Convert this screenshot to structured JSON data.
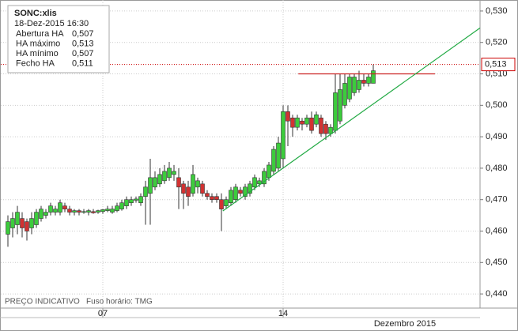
{
  "chart_data": {
    "type": "candlestick",
    "info_box": {
      "title": "SONC:xlis",
      "date": "18-Dez-2015 16:30",
      "rows": [
        [
          "Abertura HA",
          "0,507"
        ],
        [
          "HA máximo",
          "0,513"
        ],
        [
          "HA mínimo",
          "0,507"
        ],
        [
          "Fecho HA",
          "0,511"
        ]
      ]
    },
    "footer_note": "PREÇO INDICATIVO",
    "timezone_note": "Fuso horário: TMG",
    "x_label": "Dezembro 2015",
    "open": [
      0.459,
      0.461,
      0.462,
      0.464,
      0.463,
      0.461,
      0.462,
      0.464,
      0.465,
      0.466,
      0.466,
      0.466,
      0.468,
      0.467,
      0.466,
      0.4665,
      0.466,
      0.466,
      0.4662,
      0.466,
      0.4662,
      0.4665,
      0.466,
      0.4665,
      0.467,
      0.468,
      0.469,
      0.4698,
      0.469,
      0.471,
      0.472,
      0.474,
      0.475,
      0.476,
      0.477,
      0.478,
      0.477,
      0.475,
      0.474,
      0.472,
      0.474,
      0.475,
      0.472,
      0.471,
      0.471,
      0.47,
      0.468,
      0.469,
      0.47,
      0.473,
      0.471,
      0.472,
      0.474,
      0.475,
      0.475,
      0.477,
      0.479,
      0.48,
      0.483,
      0.498,
      0.496,
      0.493,
      0.495,
      0.494,
      0.496,
      0.494,
      0.496,
      0.494,
      0.491,
      0.492,
      0.495,
      0.5,
      0.502,
      0.504,
      0.505,
      0.508,
      0.507,
      0.507
    ],
    "high": [
      0.465,
      0.466,
      0.468,
      0.466,
      0.464,
      0.466,
      0.467,
      0.468,
      0.467,
      0.469,
      0.468,
      0.47,
      0.469,
      0.468,
      0.467,
      0.467,
      0.467,
      0.467,
      0.467,
      0.4668,
      0.467,
      0.468,
      0.468,
      0.469,
      0.47,
      0.471,
      0.471,
      0.471,
      0.472,
      0.476,
      0.483,
      0.479,
      0.48,
      0.481,
      0.482,
      0.481,
      0.48,
      0.476,
      0.476,
      0.481,
      0.477,
      0.476,
      0.473,
      0.472,
      0.472,
      0.472,
      0.471,
      0.474,
      0.475,
      0.474,
      0.475,
      0.476,
      0.478,
      0.477,
      0.48,
      0.482,
      0.487,
      0.49,
      0.5,
      0.5,
      0.497,
      0.497,
      0.496,
      0.497,
      0.498,
      0.498,
      0.497,
      0.495,
      0.494,
      0.51,
      0.51,
      0.51,
      0.51,
      0.51,
      0.511,
      0.51,
      0.51,
      0.513
    ],
    "low": [
      0.455,
      0.458,
      0.459,
      0.458,
      0.457,
      0.459,
      0.461,
      0.463,
      0.464,
      0.465,
      0.465,
      0.465,
      0.466,
      0.465,
      0.465,
      0.465,
      0.4655,
      0.465,
      0.4655,
      0.4655,
      0.4655,
      0.466,
      0.4655,
      0.466,
      0.4665,
      0.467,
      0.468,
      0.469,
      0.468,
      0.462,
      0.462,
      0.473,
      0.474,
      0.475,
      0.476,
      0.476,
      0.467,
      0.467,
      0.468,
      0.471,
      0.472,
      0.471,
      0.47,
      0.469,
      0.469,
      0.46,
      0.467,
      0.468,
      0.469,
      0.471,
      0.47,
      0.471,
      0.473,
      0.474,
      0.474,
      0.476,
      0.478,
      0.479,
      0.48,
      0.487,
      0.49,
      0.492,
      0.492,
      0.493,
      0.491,
      0.493,
      0.49,
      0.489,
      0.49,
      0.491,
      0.494,
      0.499,
      0.501,
      0.503,
      0.504,
      0.506,
      0.506,
      0.507
    ],
    "close": [
      0.463,
      0.464,
      0.466,
      0.461,
      0.46,
      0.464,
      0.466,
      0.467,
      0.466,
      0.468,
      0.467,
      0.469,
      0.467,
      0.466,
      0.4665,
      0.466,
      0.4662,
      0.4665,
      0.4658,
      0.4665,
      0.4668,
      0.467,
      0.467,
      0.468,
      0.469,
      0.47,
      0.47,
      0.4702,
      0.471,
      0.474,
      0.477,
      0.477,
      0.478,
      0.479,
      0.48,
      0.479,
      0.474,
      0.472,
      0.471,
      0.478,
      0.476,
      0.472,
      0.471,
      0.47,
      0.47,
      0.467,
      0.47,
      0.473,
      0.474,
      0.472,
      0.474,
      0.475,
      0.477,
      0.476,
      0.479,
      0.481,
      0.486,
      0.488,
      0.498,
      0.495,
      0.493,
      0.496,
      0.494,
      0.496,
      0.492,
      0.497,
      0.491,
      0.491,
      0.493,
      0.504,
      0.505,
      0.507,
      0.509,
      0.509,
      0.508,
      0.507,
      0.509,
      0.511
    ],
    "up_color": "#3ccc3c",
    "down_color": "#d23232",
    "xlim": [
      -1.5,
      99.5
    ],
    "xticks": [
      {
        "value": 20,
        "label": "07"
      },
      {
        "value": 58,
        "label": "14"
      }
    ],
    "ylim": [
      0.4355,
      0.5335
    ],
    "yticks": [
      {
        "value": 0.44,
        "label": "0,440"
      },
      {
        "value": 0.45,
        "label": "0,450"
      },
      {
        "value": 0.46,
        "label": "0,460"
      },
      {
        "value": 0.47,
        "label": "0,470"
      },
      {
        "value": 0.48,
        "label": "0,480"
      },
      {
        "value": 0.49,
        "label": "0,490"
      },
      {
        "value": 0.5,
        "label": "0,500"
      },
      {
        "value": 0.51,
        "label": "0,510"
      },
      {
        "value": 0.52,
        "label": "0,520"
      },
      {
        "value": 0.53,
        "label": "0,530"
      }
    ],
    "grid": true,
    "last_price": {
      "value": 0.513,
      "label": "0,513",
      "color": "#cc0000"
    },
    "lines": [
      {
        "color": "#cc2222",
        "x": [
          61.2,
          90
        ],
        "values": [
          0.51,
          0.51
        ]
      },
      {
        "color": "#22aa44",
        "x": [
          45.3,
          99.5
        ],
        "values": [
          0.4664,
          0.5246
        ]
      }
    ]
  }
}
